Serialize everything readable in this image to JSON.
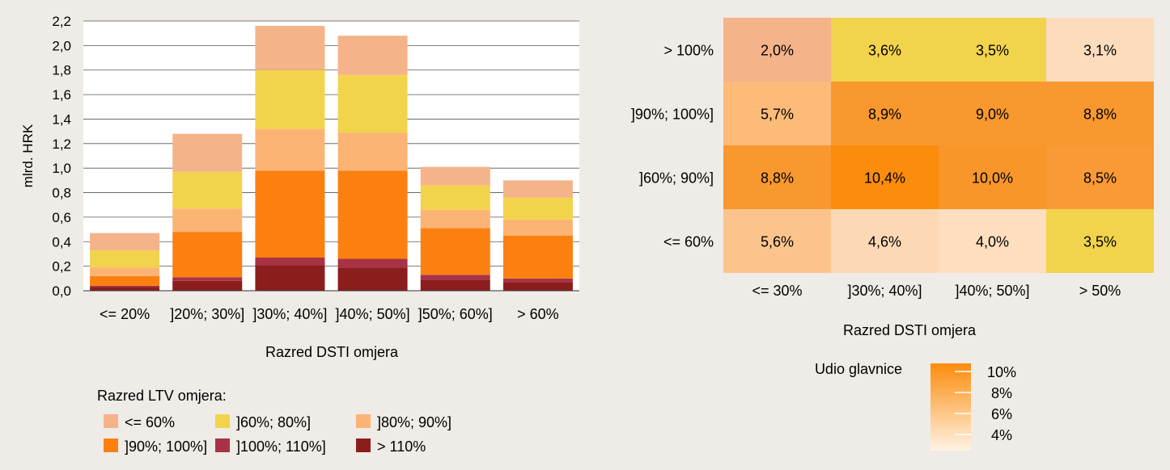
{
  "chart_data": [
    {
      "type": "bar",
      "stacked": true,
      "categories": [
        "<= 20%",
        "]20%; 30%]",
        "]30%; 40%]",
        "]40%; 50%]",
        "]50%; 60%]",
        "> 60%"
      ],
      "series": [
        {
          "name": "> 110%",
          "color": "#8b1d1d",
          "values": [
            0.03,
            0.08,
            0.21,
            0.19,
            0.09,
            0.07
          ]
        },
        {
          "name": "]100%; 110%]",
          "color": "#a83246",
          "values": [
            0.01,
            0.03,
            0.06,
            0.07,
            0.04,
            0.03
          ]
        },
        {
          "name": "]90%; 100%]",
          "color": "#fb8010",
          "values": [
            0.08,
            0.37,
            0.71,
            0.72,
            0.38,
            0.35
          ]
        },
        {
          "name": "]80%; 90%]",
          "color": "#fcb474",
          "values": [
            0.07,
            0.19,
            0.34,
            0.31,
            0.15,
            0.13
          ]
        },
        {
          "name": "]60%; 80%]",
          "color": "#f2d34c",
          "values": [
            0.14,
            0.3,
            0.48,
            0.47,
            0.2,
            0.18
          ]
        },
        {
          "name": "<= 60%",
          "color": "#f5b38a",
          "values": [
            0.14,
            0.31,
            0.36,
            0.32,
            0.15,
            0.14
          ]
        }
      ],
      "ylabel": "mlrd. HRK",
      "xlabel": "Razred DSTI omjera",
      "ylim": [
        0,
        2.2
      ],
      "yticks": [
        "0,0",
        "0,2",
        "0,4",
        "0,6",
        "0,8",
        "1,0",
        "1,2",
        "1,4",
        "1,6",
        "1,8",
        "2,0",
        "2,2"
      ],
      "ytick_values": [
        0,
        0.2,
        0.4,
        0.6,
        0.8,
        1.0,
        1.2,
        1.4,
        1.6,
        1.8,
        2.0,
        2.2
      ],
      "grid": true,
      "legend_title": "Razred LTV omjera:",
      "legend_order": [
        "<= 60%",
        "]60%; 80%]",
        "]80%; 90%]",
        "]90%; 100%]",
        "]100%; 110%]",
        "> 110%"
      ],
      "legend_position": "bottom-left"
    },
    {
      "type": "heatmap",
      "x_categories": [
        "<= 30%",
        "]30%; 40%]",
        "]40%; 50%]",
        "> 50%"
      ],
      "y_categories": [
        "> 100%",
        "]90%; 100%]",
        "]60%; 90%]",
        "<= 60%"
      ],
      "values": [
        [
          2.0,
          3.6,
          3.5,
          3.1
        ],
        [
          5.7,
          8.9,
          9.0,
          8.8
        ],
        [
          8.8,
          10.4,
          10.0,
          8.5
        ],
        [
          5.6,
          4.6,
          4.0,
          3.5
        ]
      ],
      "labels": [
        [
          "2,0%",
          "3,6%",
          "3,5%",
          "3,1%"
        ],
        [
          "5,7%",
          "8,9%",
          "9,0%",
          "8,8%"
        ],
        [
          "8,8%",
          "10,4%",
          "10,0%",
          "8,5%"
        ],
        [
          "5,6%",
          "4,6%",
          "4,0%",
          "3,5%"
        ]
      ],
      "cell_colors": [
        [
          "#f5b38a",
          "#f2d34c",
          "#f2d34c",
          "#fcdcbd"
        ],
        [
          "#fcbb78",
          "#f9982e",
          "#f9982e",
          "#f9982e"
        ],
        [
          "#f9982e",
          "#fb8c0c",
          "#f9962a",
          "#f99a36"
        ],
        [
          "#fcc48c",
          "#fdd8b4",
          "#fedebe",
          "#f2d34c"
        ]
      ],
      "xlabel": "Razred DSTI omjera",
      "colorbar": {
        "title": "Udio glavnice",
        "ticks": [
          "10%",
          "8%",
          "6%",
          "4%"
        ],
        "tick_values": [
          10,
          8,
          6,
          4
        ],
        "color_high": "#fb8c0c",
        "color_low": "#fff3e4",
        "position": "bottom-right"
      }
    }
  ]
}
